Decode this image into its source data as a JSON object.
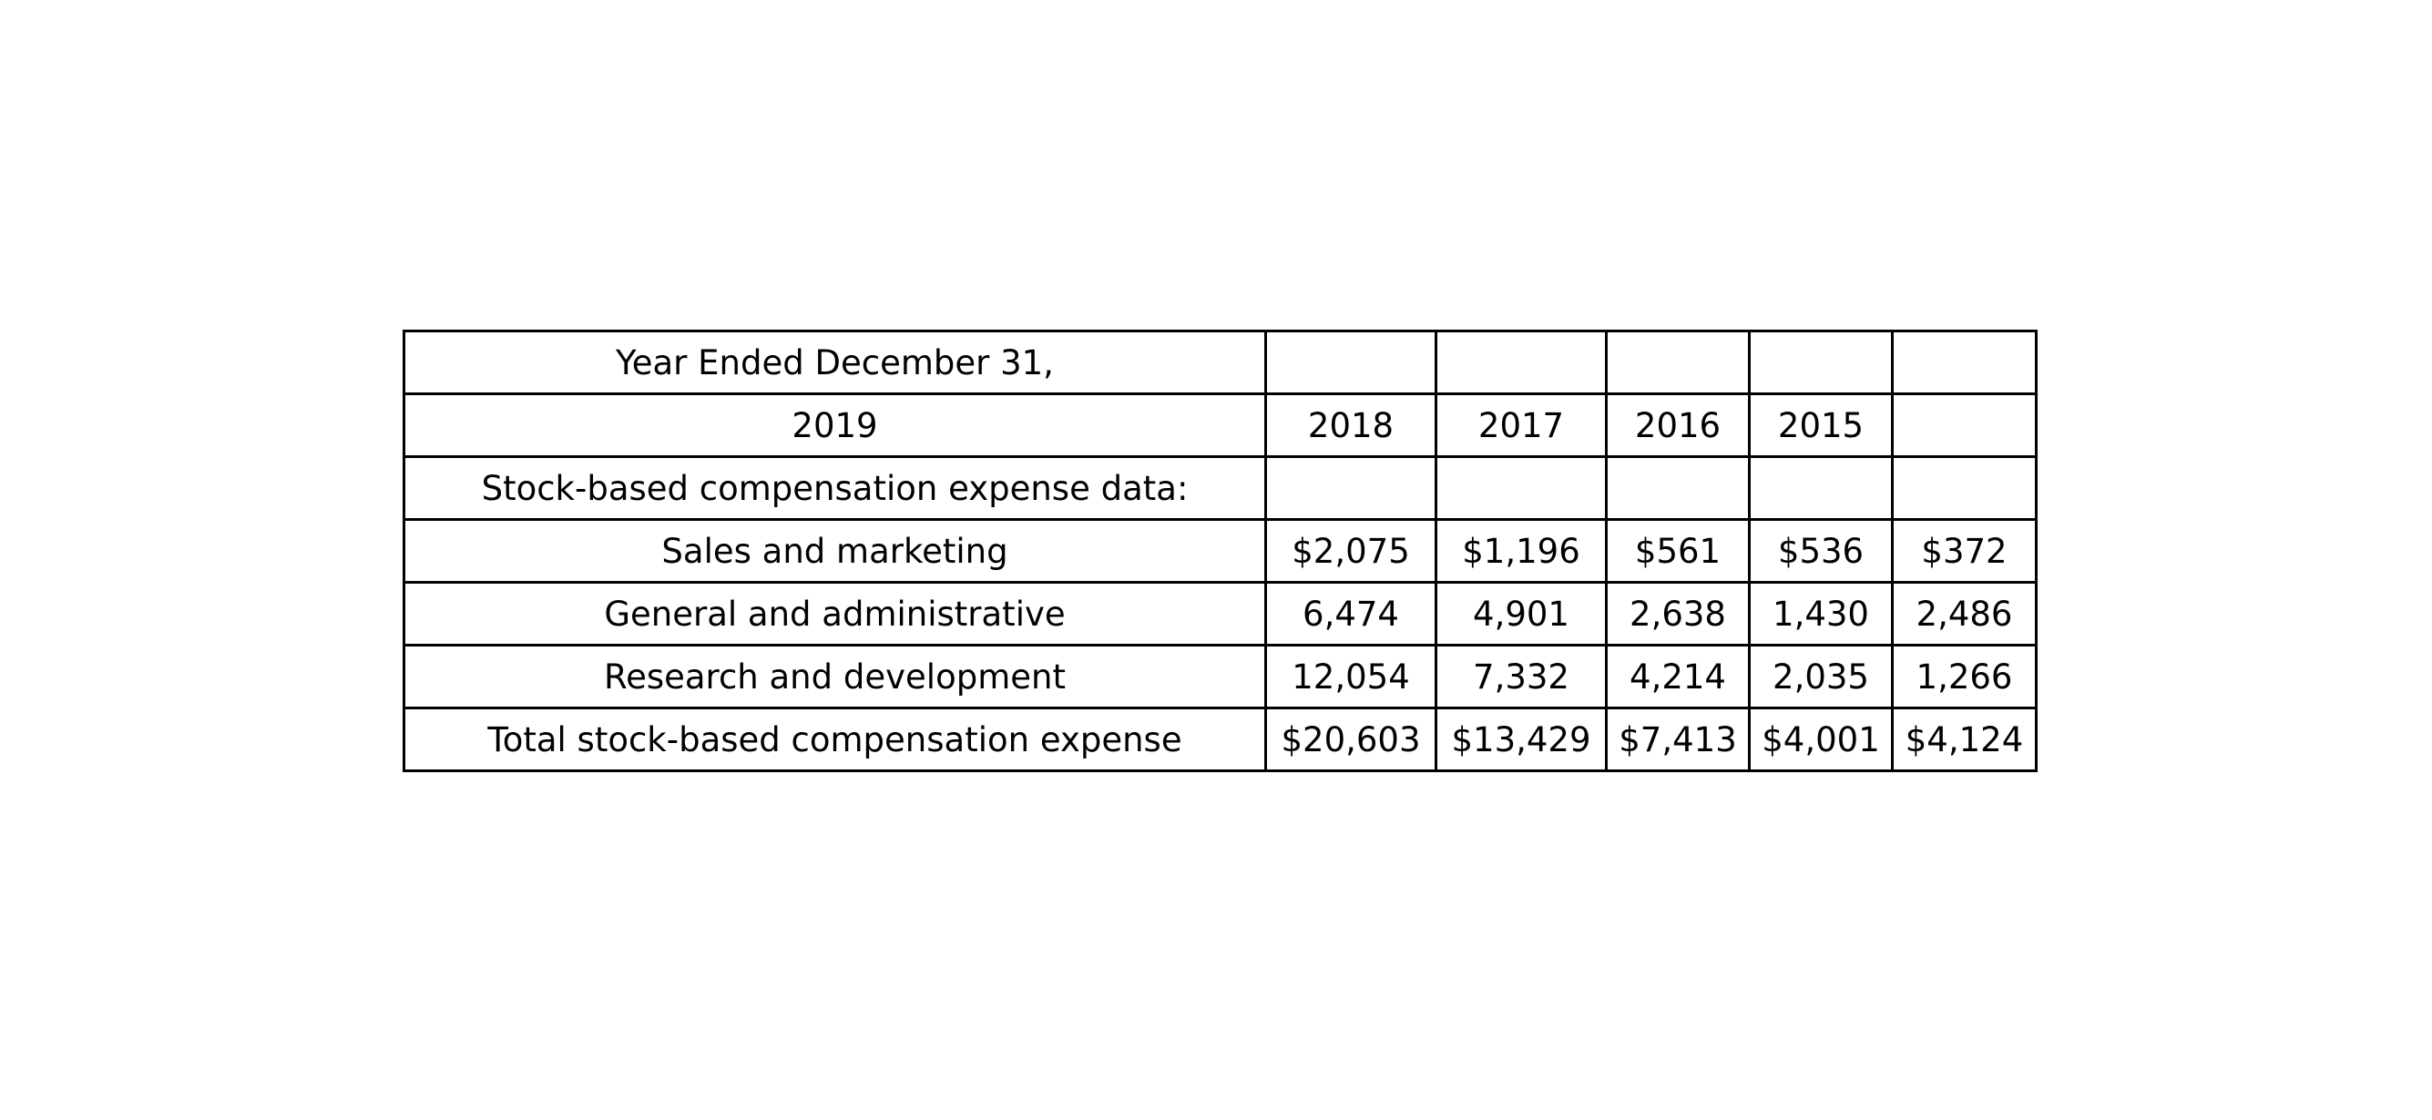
{
  "chart_data": {
    "type": "table",
    "rows": [
      [
        "Year Ended December 31,",
        "",
        "",
        "",
        "",
        ""
      ],
      [
        "2019",
        "2018",
        "2017",
        "2016",
        "2015",
        ""
      ],
      [
        "Stock-based compensation expense data:",
        "",
        "",
        "",
        "",
        ""
      ],
      [
        "Sales and marketing",
        "$2,075",
        "$1,196",
        "$561",
        "$536",
        "$372"
      ],
      [
        "General and administrative",
        "6,474",
        "4,901",
        "2,638",
        "1,430",
        "2,486"
      ],
      [
        "Research and development",
        "12,054",
        "7,332",
        "4,214",
        "2,035",
        "1,266"
      ],
      [
        "Total stock-based compensation expense",
        "$20,603",
        "$13,429",
        "$7,413",
        "$4,001",
        "$4,124"
      ]
    ]
  }
}
